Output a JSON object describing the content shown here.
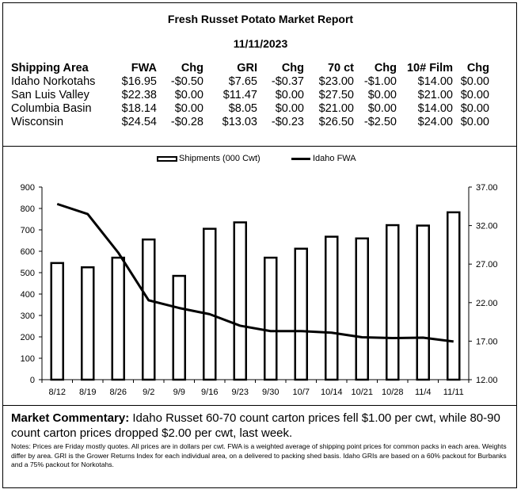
{
  "report": {
    "title": "Fresh Russet Potato Market Report",
    "date": "11/11/2023"
  },
  "price_table": {
    "headers": [
      "Shipping Area",
      "FWA",
      "Chg",
      "GRI",
      "Chg",
      "70 ct",
      "Chg",
      "10# Film",
      "Chg"
    ],
    "rows": [
      [
        "Idaho Norkotahs",
        "$16.95",
        "-$0.50",
        "$7.65",
        "-$0.37",
        "$23.00",
        "-$1.00",
        "$14.00",
        "$0.00"
      ],
      [
        "San Luis Valley",
        "$22.38",
        "$0.00",
        "$11.47",
        "$0.00",
        "$27.50",
        "$0.00",
        "$21.00",
        "$0.00"
      ],
      [
        "Columbia Basin",
        "$18.14",
        "$0.00",
        "$8.05",
        "$0.00",
        "$21.00",
        "$0.00",
        "$14.00",
        "$0.00"
      ],
      [
        "Wisconsin",
        "$24.54",
        "-$0.28",
        "$13.03",
        "-$0.23",
        "$26.50",
        "-$2.50",
        "$24.00",
        "$0.00"
      ]
    ]
  },
  "chart_data": {
    "type": "bar",
    "categories": [
      "8/12",
      "8/19",
      "8/26",
      "9/2",
      "9/9",
      "9/16",
      "9/23",
      "9/30",
      "10/7",
      "10/14",
      "10/21",
      "10/28",
      "11/4",
      "11/11"
    ],
    "series": [
      {
        "name": "Shipments (000 Cwt)",
        "type": "bar",
        "axis": "left",
        "values": [
          545,
          525,
          570,
          655,
          485,
          705,
          735,
          570,
          612,
          668,
          660,
          722,
          720,
          782
        ]
      },
      {
        "name": "Idaho FWA",
        "type": "line",
        "axis": "right",
        "values": [
          34.8,
          33.5,
          28.5,
          22.3,
          21.3,
          20.5,
          19.0,
          18.3,
          18.3,
          18.1,
          17.5,
          17.4,
          17.45,
          16.95
        ]
      }
    ],
    "ylim_left": [
      0,
      900
    ],
    "yticks_left": [
      "0",
      "100",
      "200",
      "300",
      "400",
      "500",
      "600",
      "700",
      "800",
      "900"
    ],
    "ylim_right": [
      12,
      37
    ],
    "yticks_right": [
      "12.00",
      "17.00",
      "22.00",
      "27.00",
      "32.00",
      "37.00"
    ],
    "legend": "top-center",
    "grid": false
  },
  "commentary": {
    "label": "Market Commentary:",
    "text": " Idaho Russet 60-70 count carton prices fell $1.00 per cwt, while 80-90 count carton prices dropped $2.00 per cwt, last week."
  },
  "notes": "Notes: Prices are Friday mostly quotes. All prices are in dollars per cwt. FWA is a weighted average of shipping point prices for  common packs in each area. Weights differ by area. GRI is the Grower Returns Index for each individual area, on a delivered to packing shed basis. Idaho GRIs are based on a 60% packout for Burbanks and a 75% packout for Norkotahs."
}
